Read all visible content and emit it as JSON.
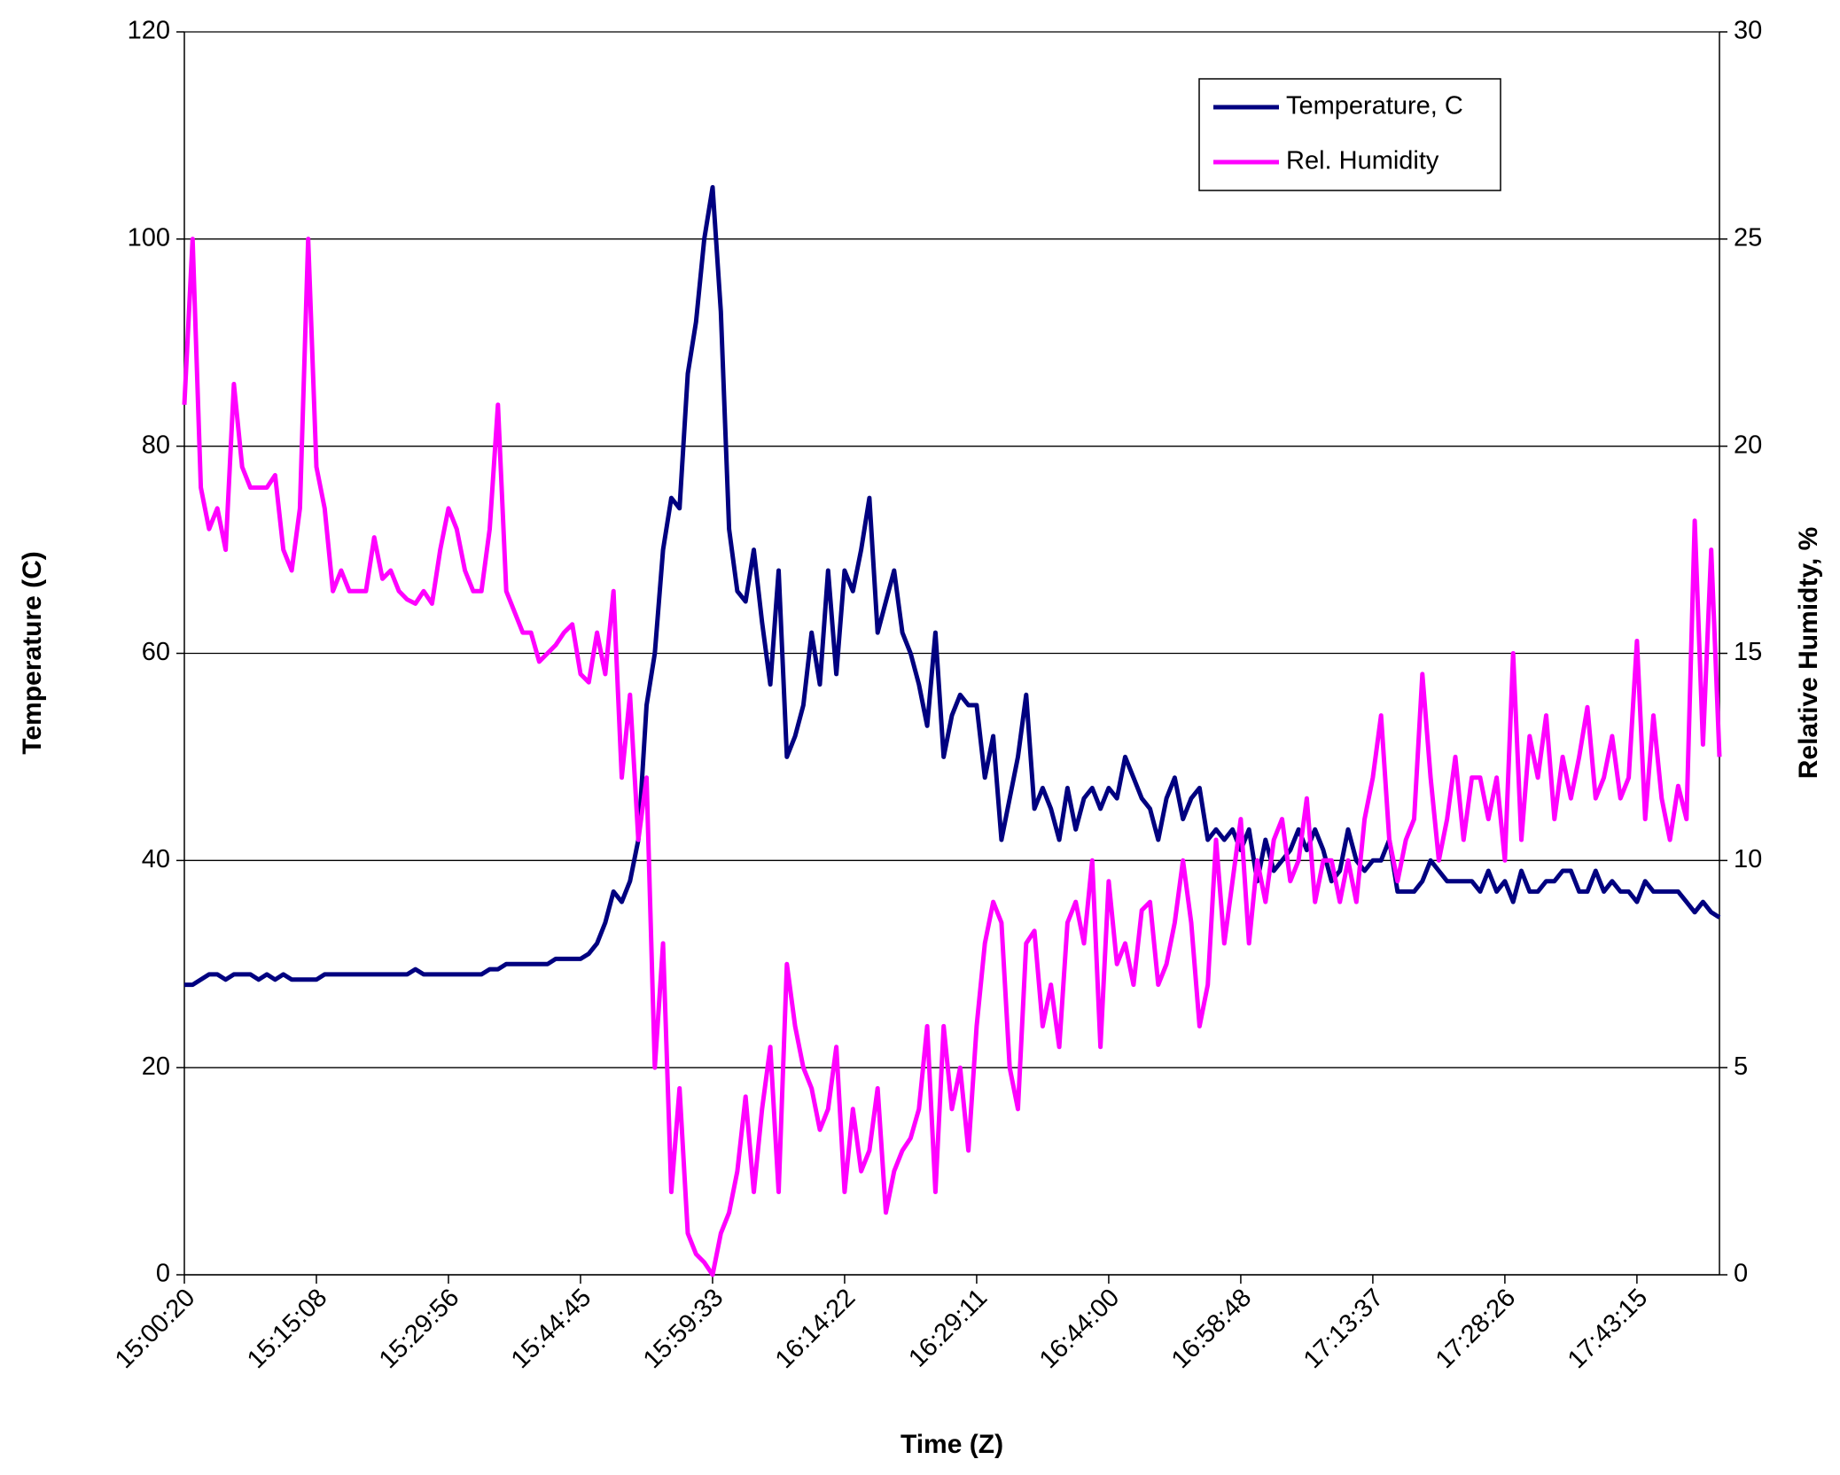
{
  "chart_data": {
    "type": "line",
    "x_label": "Time (Z)",
    "y_label": "Temperature (C)",
    "y2_label": "Relative Humidty, %",
    "ylim": [
      0,
      120
    ],
    "yticks": [
      0,
      20,
      40,
      60,
      80,
      100,
      120
    ],
    "y2lim": [
      0,
      30
    ],
    "y2ticks": [
      0,
      5,
      10,
      15,
      20,
      25,
      30
    ],
    "grid": true,
    "legend": "upper right",
    "categories": [
      "15:00:20",
      null,
      null,
      null,
      null,
      null,
      null,
      null,
      null,
      null,
      null,
      null,
      null,
      null,
      null,
      null,
      "15:15:08",
      null,
      null,
      null,
      null,
      null,
      null,
      null,
      null,
      null,
      null,
      null,
      null,
      null,
      null,
      null,
      "15:29:56",
      null,
      null,
      null,
      null,
      null,
      null,
      null,
      null,
      null,
      null,
      null,
      null,
      null,
      null,
      null,
      "15:44:45",
      null,
      null,
      null,
      null,
      null,
      null,
      null,
      null,
      null,
      null,
      null,
      null,
      null,
      null,
      null,
      "15:59:33",
      null,
      null,
      null,
      null,
      null,
      null,
      null,
      null,
      null,
      null,
      null,
      null,
      null,
      null,
      null,
      "16:14:22",
      null,
      null,
      null,
      null,
      null,
      null,
      null,
      null,
      null,
      null,
      null,
      null,
      null,
      null,
      null,
      "16:29:11",
      null,
      null,
      null,
      null,
      null,
      null,
      null,
      null,
      null,
      null,
      null,
      null,
      null,
      null,
      null,
      "16:44:00",
      null,
      null,
      null,
      null,
      null,
      null,
      null,
      null,
      null,
      null,
      null,
      null,
      null,
      null,
      null,
      "16:58:48",
      null,
      null,
      null,
      null,
      null,
      null,
      null,
      null,
      null,
      null,
      null,
      null,
      null,
      null,
      null,
      "17:13:37",
      null,
      null,
      null,
      null,
      null,
      null,
      null,
      null,
      null,
      null,
      null,
      null,
      null,
      null,
      null,
      "17:28:26",
      null,
      null,
      null,
      null,
      null,
      null,
      null,
      null,
      null,
      null,
      null,
      null,
      null,
      null,
      null,
      "17:43:15",
      null,
      null,
      null,
      null,
      null,
      null,
      null,
      null,
      null,
      null
    ],
    "series": [
      {
        "name": "Temperature, C",
        "color": "#000080",
        "axis": "y",
        "values": [
          28,
          28,
          28.5,
          29,
          29,
          28.5,
          29,
          29,
          29,
          28.5,
          29,
          28.5,
          29,
          28.5,
          28.5,
          28.5,
          28.5,
          29,
          29,
          29,
          29,
          29,
          29,
          29,
          29,
          29,
          29,
          29,
          29.5,
          29,
          29,
          29,
          29,
          29,
          29,
          29,
          29,
          29.5,
          29.5,
          30,
          30,
          30,
          30,
          30,
          30,
          30.5,
          30.5,
          30.5,
          30.5,
          31,
          32,
          34,
          37,
          36,
          38,
          42,
          55,
          60,
          70,
          75,
          74,
          87,
          92,
          100,
          105,
          93,
          72,
          66,
          65,
          70,
          63,
          57,
          68,
          50,
          52,
          55,
          62,
          57,
          68,
          58,
          68,
          66,
          70,
          75,
          62,
          65,
          68,
          62,
          60,
          57,
          53,
          62,
          50,
          54,
          56,
          55,
          55,
          48,
          52,
          42,
          46,
          50,
          56,
          45,
          47,
          45,
          42,
          47,
          43,
          46,
          47,
          45,
          47,
          46,
          50,
          48,
          46,
          45,
          42,
          46,
          48,
          44,
          46,
          47,
          42,
          43,
          42,
          43,
          41,
          43,
          38,
          42,
          39,
          40,
          41,
          43,
          41,
          43,
          41,
          38,
          39,
          43,
          40,
          39,
          40,
          40,
          42,
          37,
          37,
          37,
          38,
          40,
          39,
          38,
          38,
          38,
          38,
          37,
          39,
          37,
          38,
          36,
          39,
          37,
          37,
          38,
          38,
          39,
          39,
          37,
          37,
          39,
          37,
          38,
          37,
          37,
          36,
          38,
          37,
          37,
          37,
          37,
          36,
          35,
          36,
          35,
          34.5
        ]
      },
      {
        "name": "Rel. Humidity",
        "color": "#ff00ff",
        "axis": "y2",
        "values": [
          21,
          25,
          19,
          18,
          18.5,
          17.5,
          21.5,
          19.5,
          19,
          19,
          19,
          19.3,
          17.5,
          17,
          18.5,
          25,
          19.5,
          18.5,
          16.5,
          17,
          16.5,
          16.5,
          16.5,
          17.8,
          16.8,
          17,
          16.5,
          16.3,
          16.2,
          16.5,
          16.2,
          17.5,
          18.5,
          18,
          17,
          16.5,
          16.5,
          18,
          21,
          16.5,
          16,
          15.5,
          15.5,
          14.8,
          15,
          15.2,
          15.5,
          15.7,
          14.5,
          14.3,
          15.5,
          14.5,
          16.5,
          12,
          14,
          10.5,
          12,
          5,
          8,
          2,
          4.5,
          1,
          0.5,
          0.3,
          0,
          1,
          1.5,
          2.5,
          4.3,
          2,
          4,
          5.5,
          2,
          7.5,
          6,
          5,
          4.5,
          3.5,
          4,
          5.5,
          2,
          4,
          2.5,
          3,
          4.5,
          1.5,
          2.5,
          3,
          3.3,
          4,
          6,
          2,
          6,
          4,
          5,
          3,
          6,
          8,
          9,
          8.5,
          5,
          4,
          8,
          8.3,
          6,
          7,
          5.5,
          8.5,
          9,
          8,
          10,
          5.5,
          9.5,
          7.5,
          8,
          7,
          8.8,
          9,
          7,
          7.5,
          8.5,
          10,
          8.5,
          6,
          7,
          10.5,
          8,
          9.5,
          11,
          8,
          10,
          9,
          10.5,
          11,
          9.5,
          10,
          11.5,
          9,
          10,
          10,
          9,
          10,
          9,
          11,
          12,
          13.5,
          10.5,
          9.5,
          10.5,
          11,
          14.5,
          12,
          10,
          11,
          12.5,
          10.5,
          12,
          12,
          11,
          12,
          10,
          15,
          10.5,
          13,
          12,
          13.5,
          11,
          12.5,
          11.5,
          12.5,
          13.7,
          11.5,
          12,
          13,
          11.5,
          12,
          15.3,
          11,
          13.5,
          11.5,
          10.5,
          11.8,
          11,
          18.2,
          12.8,
          17.5,
          12.5
        ]
      }
    ]
  }
}
